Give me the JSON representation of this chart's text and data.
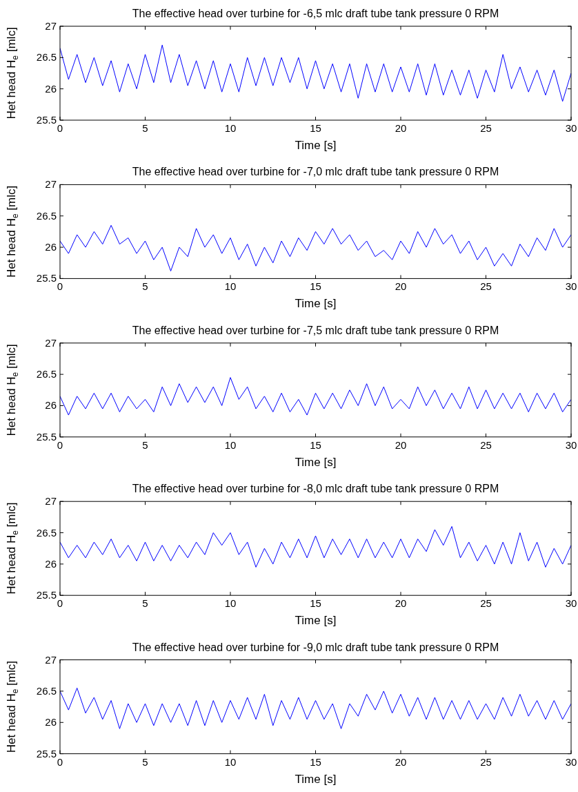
{
  "chart_data": [
    {
      "type": "line",
      "title": "The effective head over turbine for -6,5 mlc draft tube tank pressure 0 RPM",
      "xlabel": "Time [s]",
      "ylabel": "Het head H$_{e}$ [mlc]",
      "xlim": [
        0,
        30
      ],
      "xticks": [
        0,
        5,
        10,
        15,
        20,
        25,
        30
      ],
      "ylim": [
        25.5,
        27
      ],
      "yticks": [
        25.5,
        26,
        26.5,
        27
      ],
      "x": [
        0,
        0.5,
        1,
        1.5,
        2,
        2.5,
        3,
        3.5,
        4,
        4.5,
        5,
        5.5,
        6,
        6.5,
        7,
        7.5,
        8,
        8.5,
        9,
        9.5,
        10,
        10.5,
        11,
        11.5,
        12,
        12.5,
        13,
        13.5,
        14,
        14.5,
        15,
        15.5,
        16,
        16.5,
        17,
        17.5,
        18,
        18.5,
        19,
        19.5,
        20,
        20.5,
        21,
        21.5,
        22,
        22.5,
        23,
        23.5,
        24,
        24.5,
        25,
        25.5,
        26,
        26.5,
        27,
        27.5,
        28,
        28.5,
        29,
        29.5,
        30
      ],
      "series": [
        {
          "color": "#0000ff",
          "values": [
            26.65,
            26.15,
            26.55,
            26.1,
            26.5,
            26.05,
            26.45,
            25.95,
            26.4,
            26.0,
            26.55,
            26.1,
            26.7,
            26.1,
            26.55,
            26.05,
            26.45,
            26.0,
            26.45,
            25.95,
            26.4,
            25.95,
            26.5,
            26.05,
            26.5,
            26.05,
            26.5,
            26.1,
            26.5,
            26.0,
            26.45,
            26.0,
            26.4,
            25.95,
            26.4,
            25.85,
            26.4,
            25.95,
            26.4,
            25.95,
            26.35,
            25.95,
            26.4,
            25.9,
            26.4,
            25.9,
            26.3,
            25.9,
            26.3,
            25.85,
            26.3,
            25.95,
            26.55,
            26.0,
            26.35,
            25.95,
            26.3,
            25.9,
            26.3,
            25.8,
            26.25
          ]
        }
      ]
    },
    {
      "type": "line",
      "title": "The effective head over turbine for -7,0 mlc draft tube tank pressure 0 RPM",
      "xlabel": "Time [s]",
      "ylabel": "Het head H$_{e}$ [mlc]",
      "xlim": [
        0,
        30
      ],
      "xticks": [
        0,
        5,
        10,
        15,
        20,
        25,
        30
      ],
      "ylim": [
        25.5,
        27
      ],
      "yticks": [
        25.5,
        26,
        26.5,
        27
      ],
      "x": [
        0,
        0.5,
        1,
        1.5,
        2,
        2.5,
        3,
        3.5,
        4,
        4.5,
        5,
        5.5,
        6,
        6.5,
        7,
        7.5,
        8,
        8.5,
        9,
        9.5,
        10,
        10.5,
        11,
        11.5,
        12,
        12.5,
        13,
        13.5,
        14,
        14.5,
        15,
        15.5,
        16,
        16.5,
        17,
        17.5,
        18,
        18.5,
        19,
        19.5,
        20,
        20.5,
        21,
        21.5,
        22,
        22.5,
        23,
        23.5,
        24,
        24.5,
        25,
        25.5,
        26,
        26.5,
        27,
        27.5,
        28,
        28.5,
        29,
        29.5,
        30
      ],
      "series": [
        {
          "color": "#0000ff",
          "values": [
            26.1,
            25.9,
            26.2,
            26.0,
            26.25,
            26.05,
            26.35,
            26.05,
            26.15,
            25.9,
            26.1,
            25.8,
            26.0,
            25.62,
            26.0,
            25.85,
            26.3,
            26.0,
            26.2,
            25.9,
            26.15,
            25.8,
            26.05,
            25.7,
            26.0,
            25.75,
            26.1,
            25.85,
            26.15,
            25.95,
            26.25,
            26.05,
            26.3,
            26.05,
            26.2,
            25.95,
            26.1,
            25.85,
            25.95,
            25.8,
            26.1,
            25.9,
            26.25,
            26.0,
            26.3,
            26.05,
            26.2,
            25.9,
            26.1,
            25.8,
            26.0,
            25.7,
            25.9,
            25.7,
            26.05,
            25.85,
            26.15,
            25.95,
            26.3,
            26.0,
            26.2
          ]
        }
      ]
    },
    {
      "type": "line",
      "title": "The effective head over turbine for -7,5 mlc draft tube tank pressure 0 RPM",
      "xlabel": "Time [s]",
      "ylabel": "Het head H$_{e}$ [mlc]",
      "xlim": [
        0,
        30
      ],
      "xticks": [
        0,
        5,
        10,
        15,
        20,
        25,
        30
      ],
      "ylim": [
        25.5,
        27
      ],
      "yticks": [
        25.5,
        26,
        26.5,
        27
      ],
      "x": [
        0,
        0.5,
        1,
        1.5,
        2,
        2.5,
        3,
        3.5,
        4,
        4.5,
        5,
        5.5,
        6,
        6.5,
        7,
        7.5,
        8,
        8.5,
        9,
        9.5,
        10,
        10.5,
        11,
        11.5,
        12,
        12.5,
        13,
        13.5,
        14,
        14.5,
        15,
        15.5,
        16,
        16.5,
        17,
        17.5,
        18,
        18.5,
        19,
        19.5,
        20,
        20.5,
        21,
        21.5,
        22,
        22.5,
        23,
        23.5,
        24,
        24.5,
        25,
        25.5,
        26,
        26.5,
        27,
        27.5,
        28,
        28.5,
        29,
        29.5,
        30
      ],
      "series": [
        {
          "color": "#0000ff",
          "values": [
            26.15,
            25.85,
            26.15,
            25.95,
            26.2,
            25.95,
            26.2,
            25.9,
            26.15,
            25.95,
            26.1,
            25.9,
            26.3,
            26.0,
            26.35,
            26.05,
            26.3,
            26.05,
            26.3,
            26.0,
            26.45,
            26.1,
            26.3,
            25.95,
            26.15,
            25.9,
            26.2,
            25.9,
            26.1,
            25.85,
            26.2,
            25.95,
            26.2,
            25.95,
            26.25,
            26.0,
            26.35,
            26.0,
            26.3,
            25.95,
            26.1,
            25.95,
            26.3,
            26.0,
            26.25,
            25.95,
            26.2,
            25.95,
            26.3,
            25.95,
            26.25,
            25.95,
            26.2,
            25.95,
            26.2,
            25.9,
            26.2,
            25.95,
            26.2,
            25.9,
            26.1
          ]
        }
      ]
    },
    {
      "type": "line",
      "title": "The effective head over turbine for -8,0 mlc draft tube tank pressure 0 RPM",
      "xlabel": "Time [s]",
      "ylabel": "Het head H$_{e}$ [mlc]",
      "xlim": [
        0,
        30
      ],
      "xticks": [
        0,
        5,
        10,
        15,
        20,
        25,
        30
      ],
      "ylim": [
        25.5,
        27
      ],
      "yticks": [
        25.5,
        26,
        26.5,
        27
      ],
      "x": [
        0,
        0.5,
        1,
        1.5,
        2,
        2.5,
        3,
        3.5,
        4,
        4.5,
        5,
        5.5,
        6,
        6.5,
        7,
        7.5,
        8,
        8.5,
        9,
        9.5,
        10,
        10.5,
        11,
        11.5,
        12,
        12.5,
        13,
        13.5,
        14,
        14.5,
        15,
        15.5,
        16,
        16.5,
        17,
        17.5,
        18,
        18.5,
        19,
        19.5,
        20,
        20.5,
        21,
        21.5,
        22,
        22.5,
        23,
        23.5,
        24,
        24.5,
        25,
        25.5,
        26,
        26.5,
        27,
        27.5,
        28,
        28.5,
        29,
        29.5,
        30
      ],
      "series": [
        {
          "color": "#0000ff",
          "values": [
            26.35,
            26.1,
            26.3,
            26.1,
            26.35,
            26.15,
            26.4,
            26.1,
            26.3,
            26.05,
            26.35,
            26.05,
            26.3,
            26.05,
            26.3,
            26.1,
            26.35,
            26.15,
            26.5,
            26.3,
            26.5,
            26.15,
            26.35,
            25.95,
            26.25,
            26.0,
            26.35,
            26.1,
            26.4,
            26.1,
            26.45,
            26.1,
            26.4,
            26.15,
            26.4,
            26.1,
            26.4,
            26.1,
            26.35,
            26.1,
            26.4,
            26.1,
            26.4,
            26.2,
            26.55,
            26.3,
            26.6,
            26.1,
            26.35,
            26.05,
            26.3,
            26.0,
            26.35,
            26.0,
            26.5,
            26.05,
            26.35,
            25.95,
            26.25,
            26.0,
            26.3
          ]
        }
      ]
    },
    {
      "type": "line",
      "title": "The effective head over turbine for -9,0 mlc draft tube tank pressure 0 RPM",
      "xlabel": "Time [s]",
      "ylabel": "Het head H$_{e}$ [mlc]",
      "xlim": [
        0,
        30
      ],
      "xticks": [
        0,
        5,
        10,
        15,
        20,
        25,
        30
      ],
      "ylim": [
        25.5,
        27
      ],
      "yticks": [
        25.5,
        26,
        26.5,
        27
      ],
      "x": [
        0,
        0.5,
        1,
        1.5,
        2,
        2.5,
        3,
        3.5,
        4,
        4.5,
        5,
        5.5,
        6,
        6.5,
        7,
        7.5,
        8,
        8.5,
        9,
        9.5,
        10,
        10.5,
        11,
        11.5,
        12,
        12.5,
        13,
        13.5,
        14,
        14.5,
        15,
        15.5,
        16,
        16.5,
        17,
        17.5,
        18,
        18.5,
        19,
        19.5,
        20,
        20.5,
        21,
        21.5,
        22,
        22.5,
        23,
        23.5,
        24,
        24.5,
        25,
        25.5,
        26,
        26.5,
        27,
        27.5,
        28,
        28.5,
        29,
        29.5,
        30
      ],
      "series": [
        {
          "color": "#0000ff",
          "values": [
            26.5,
            26.2,
            26.55,
            26.15,
            26.4,
            26.05,
            26.35,
            25.9,
            26.3,
            26.0,
            26.3,
            25.95,
            26.3,
            26.0,
            26.3,
            25.95,
            26.35,
            25.95,
            26.35,
            26.0,
            26.35,
            26.05,
            26.4,
            26.05,
            26.45,
            25.95,
            26.35,
            26.05,
            26.4,
            26.05,
            26.35,
            26.05,
            26.3,
            25.9,
            26.3,
            26.1,
            26.45,
            26.2,
            26.5,
            26.15,
            26.45,
            26.1,
            26.4,
            26.05,
            26.4,
            26.05,
            26.35,
            26.05,
            26.35,
            26.05,
            26.3,
            26.05,
            26.4,
            26.1,
            26.45,
            26.1,
            26.35,
            26.05,
            26.35,
            26.05,
            26.3
          ]
        }
      ]
    }
  ]
}
